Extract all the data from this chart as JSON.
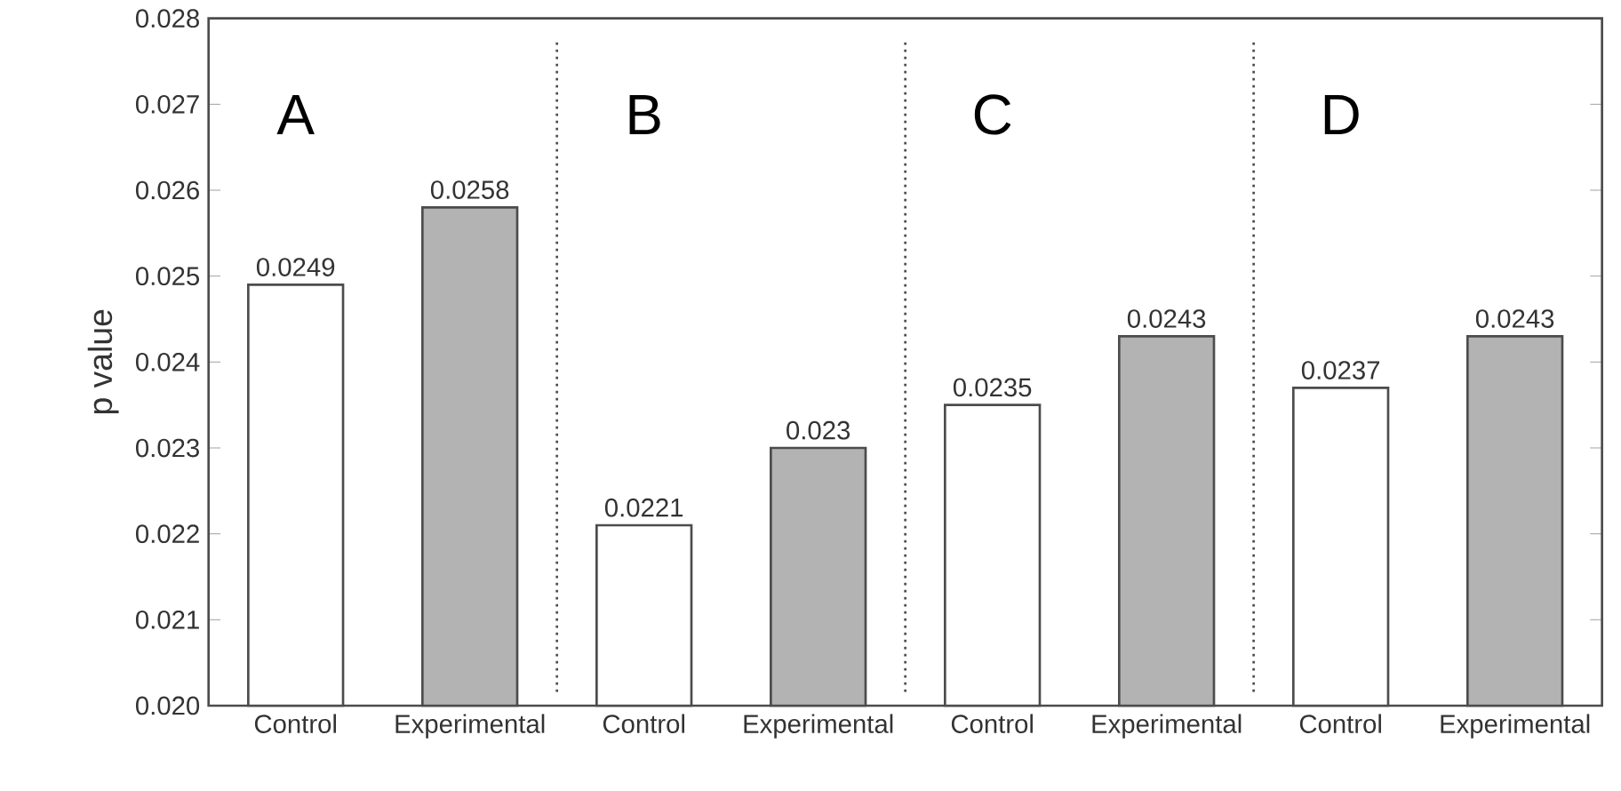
{
  "chart_data": {
    "type": "bar",
    "ylabel": "p value",
    "categories": [
      "Control",
      "Experimental",
      "Control",
      "Experimental",
      "Control",
      "Experimental",
      "Control",
      "Experimental"
    ],
    "values": [
      0.0249,
      0.0258,
      0.0221,
      0.023,
      0.0235,
      0.0243,
      0.0237,
      0.0243
    ],
    "value_labels": [
      "0.0249",
      "0.0258",
      "0.0221",
      "0.023",
      "0.0235",
      "0.0243",
      "0.0237",
      "0.0243"
    ],
    "colors": [
      "#ffffff",
      "#b3b3b3",
      "#ffffff",
      "#b3b3b3",
      "#ffffff",
      "#b3b3b3",
      "#ffffff",
      "#b3b3b3"
    ],
    "ylim": [
      0.02,
      0.028
    ],
    "yticks": [
      {
        "value": 0.02,
        "label": "0.020"
      },
      0.021,
      0.022,
      0.023,
      0.024,
      0.025,
      0.026,
      0.027,
      0.028
    ],
    "annotations": [
      "A",
      "B",
      "C",
      "D"
    ]
  }
}
